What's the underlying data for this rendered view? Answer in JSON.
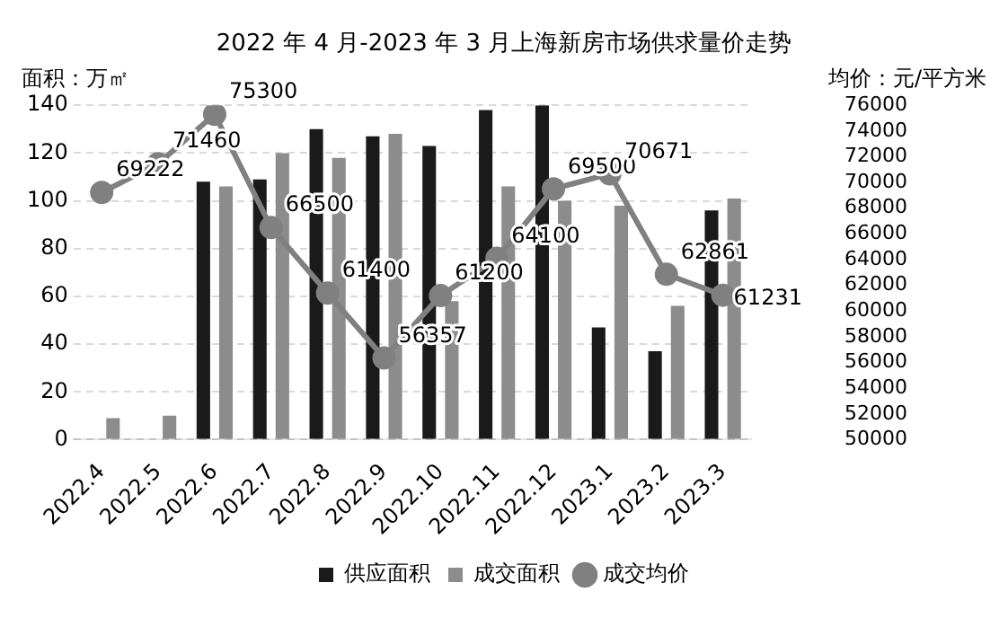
{
  "chart_data": {
    "type": "bar",
    "title": "2022 年 4 月-2023 年 3 月上海新房市场供求量价走势",
    "ylabel": "面积：万㎡",
    "y2label": "均价：元/平方米",
    "categories": [
      "2022.4",
      "2022.5",
      "2022.6",
      "2022.7",
      "2022.8",
      "2022.9",
      "2022.10",
      "2022.11",
      "2022.12",
      "2023.1",
      "2023.2",
      "2023.3"
    ],
    "series": [
      {
        "name": "供应面积",
        "color": "#1a1a1a",
        "values": [
          null,
          null,
          108,
          109,
          130,
          127,
          123,
          138,
          140,
          47,
          37,
          96
        ]
      },
      {
        "name": "成交面积",
        "color": "#8c8c8c",
        "values": [
          9,
          10,
          106,
          120,
          118,
          128,
          58,
          106,
          100,
          98,
          56,
          101
        ]
      },
      {
        "name": "成交均价",
        "type": "line",
        "axis": "y2",
        "color": "#808080",
        "marker": "circle",
        "values": [
          69222,
          71460,
          75300,
          66500,
          61400,
          56357,
          61200,
          64100,
          69500,
          70671,
          62861,
          61231
        ],
        "value_labels": [
          "69222",
          "71460",
          "75300",
          "66500",
          "61400",
          "56357",
          "61200",
          "64100",
          "69500",
          "70671",
          "62861",
          "61231"
        ]
      }
    ],
    "ylim": [
      0,
      140
    ],
    "yticks": [
      0,
      20,
      40,
      60,
      80,
      100,
      120,
      140
    ],
    "y2lim": [
      50000,
      76000
    ],
    "y2ticks": [
      50000,
      52000,
      54000,
      56000,
      58000,
      60000,
      62000,
      64000,
      66000,
      68000,
      70000,
      72000,
      74000,
      76000
    ],
    "grid": "y",
    "legend": "bottom"
  }
}
